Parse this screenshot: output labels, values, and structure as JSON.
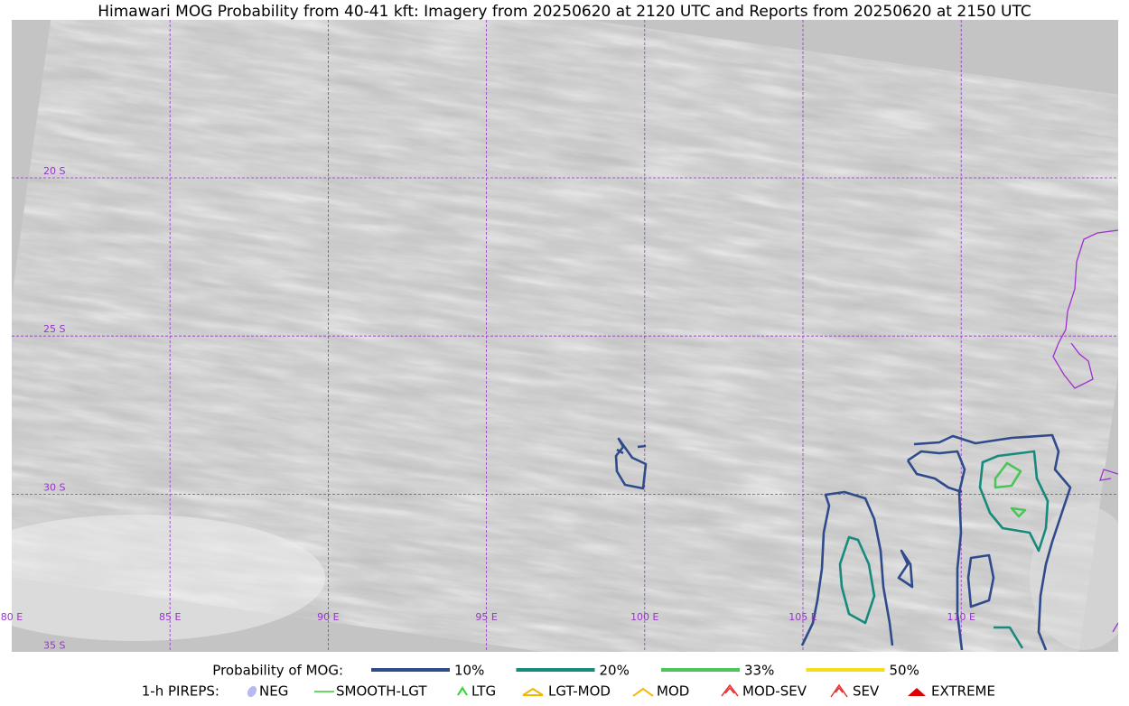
{
  "header": {
    "title": "Himawari MOG Probability from 40-41 kft: Imagery from 20250620 at 2120 UTC and Reports from 20250620 at 2150 UTC"
  },
  "map": {
    "lat_labels": [
      "20 S",
      "25 S",
      "30 S",
      "35 S"
    ],
    "lon_labels": [
      "80 E",
      "85 E",
      "90 E",
      "95 E",
      "100 E",
      "105 E",
      "110 E"
    ]
  },
  "legend": {
    "probability_title": "Probability of MOG:",
    "probability_items": [
      {
        "label": "10%",
        "color": "#2f4b8c"
      },
      {
        "label": "20%",
        "color": "#178a7c"
      },
      {
        "label": "33%",
        "color": "#4dc45a"
      },
      {
        "label": "50%",
        "color": "#f7dc18"
      }
    ],
    "pirep_title": "1-h PIREPS:",
    "pirep_items": [
      {
        "label": "NEG",
        "color": "#b8b8f5"
      },
      {
        "label": "SMOOTH-LGT",
        "color": "#33cc33"
      },
      {
        "label": "LTG",
        "color": "#22dd22"
      },
      {
        "label": "LGT-MOD",
        "color": "#f2b600"
      },
      {
        "label": "MOD",
        "color": "#f2b600"
      },
      {
        "label": "MOD-SEV",
        "color": "#e83030"
      },
      {
        "label": "SEV",
        "color": "#e83030"
      },
      {
        "label": "EXTREME",
        "color": "#dd0000"
      }
    ]
  }
}
